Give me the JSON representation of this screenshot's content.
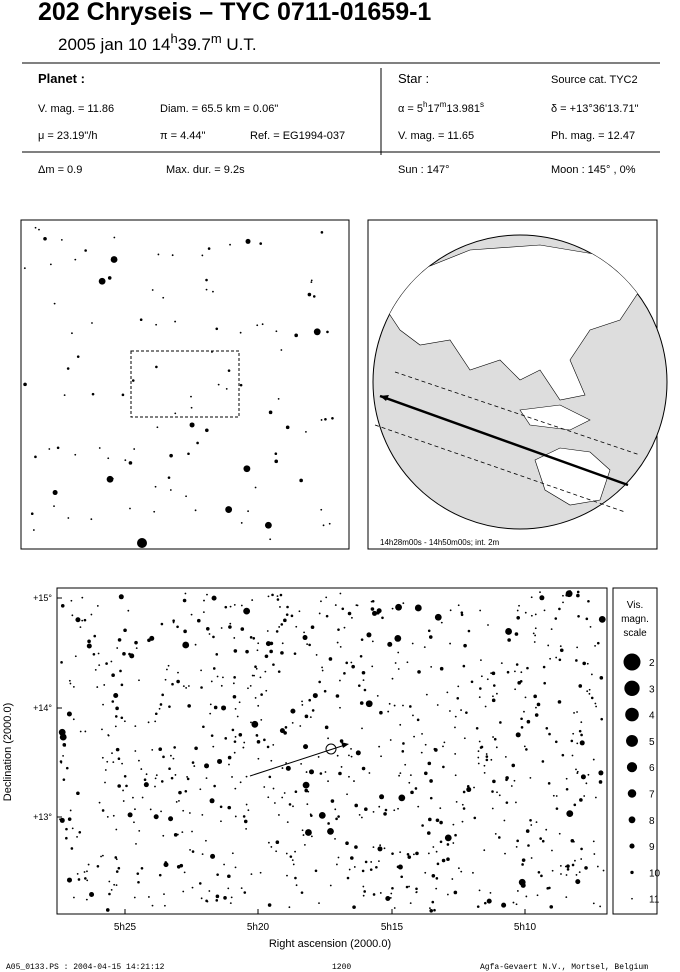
{
  "header": {
    "title": "202 Chryseis  –  TYC 0711-01659-1",
    "date": [
      "2005 jan 10  14",
      "h",
      "39.7",
      "m",
      " U.T."
    ]
  },
  "planet": {
    "heading": "Planet :",
    "vmag": "V. mag. = 11.86",
    "diam": "Diam. = 65.5 km = 0.06\"",
    "mu": "μ =  23.19\"/h",
    "pi": "π =  4.44\"",
    "ref": "Ref. = EG1994-037"
  },
  "star": {
    "heading": "Star :",
    "source": "Source cat.  TYC2",
    "alpha": [
      "α =  5",
      "h",
      "17",
      "m",
      "13.981",
      "s"
    ],
    "delta": "δ = +13°36'13.71\"",
    "vmag": "V. mag. = 11.65",
    "phmag": "Ph. mag. = 12.47"
  },
  "event": {
    "dm": "Δm = 0.9",
    "maxdur": "Max. dur. = 9.2s",
    "sun": "Sun : 147°",
    "moon": "Moon : 145° ,  0%"
  },
  "globe": {
    "caption": "14h28m00s - 14h50m00s; int.  2m"
  },
  "sky_chart": {
    "yticks": [
      "+15°",
      "+14°",
      "+13°"
    ],
    "xticks": [
      "5h25",
      "5h20",
      "5h15",
      "5h10"
    ],
    "xlabel": "Right ascension (2000.0)",
    "ylabel": "Declination (2000.0)",
    "scale": {
      "title": [
        "Vis.",
        "magn.",
        "scale"
      ],
      "magnitudes": [
        2,
        3,
        4,
        5,
        6,
        7,
        8,
        9,
        10,
        11
      ]
    }
  },
  "footer": {
    "file": "A05_0133.PS : 2004-04-15 14:21:12",
    "code": "1200",
    "credit": "Agfa-Gevaert N.V., Mortsel, Belgium"
  }
}
